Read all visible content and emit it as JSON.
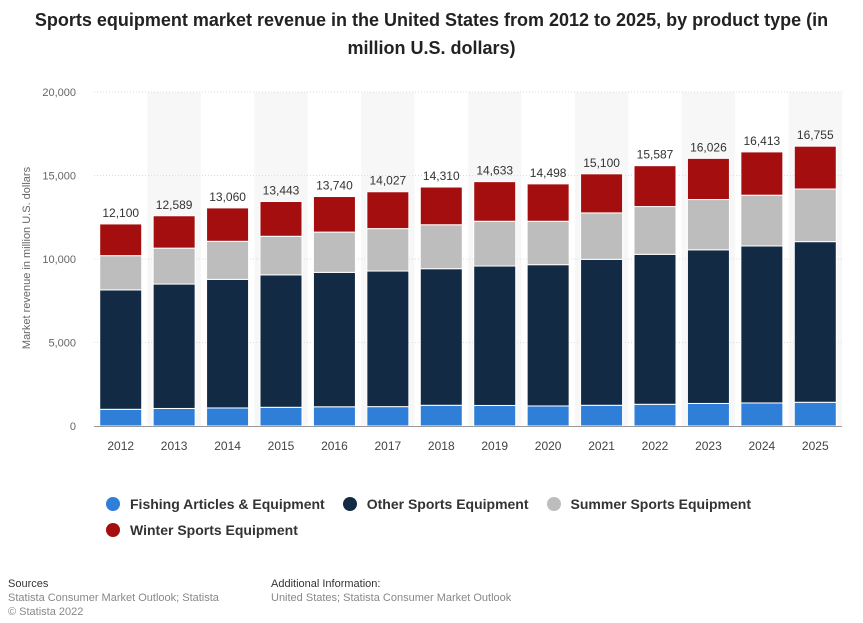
{
  "chart_data": {
    "type": "bar",
    "stacked": true,
    "title": "Sports equipment market revenue in the United States from 2012 to 2025, by product type (in million U.S. dollars)",
    "xlabel": "",
    "ylabel": "Market revenue in million U.S. dollars",
    "ylim": [
      0,
      20000
    ],
    "yticks": [
      0,
      5000,
      10000,
      15000,
      20000
    ],
    "ytick_labels": [
      "0",
      "5,000",
      "10,000",
      "15,000",
      "20,000"
    ],
    "grid": true,
    "categories": [
      "2012",
      "2013",
      "2014",
      "2015",
      "2016",
      "2017",
      "2018",
      "2019",
      "2020",
      "2021",
      "2022",
      "2023",
      "2024",
      "2025"
    ],
    "totals": [
      12100,
      12589,
      13060,
      13443,
      13740,
      14027,
      14310,
      14633,
      14498,
      15100,
      15587,
      16026,
      16413,
      16755
    ],
    "total_labels": [
      "12,100",
      "12,589",
      "13,060",
      "13,443",
      "13,740",
      "14,027",
      "14,310",
      "14,633",
      "14,498",
      "15,100",
      "15,587",
      "16,026",
      "16,413",
      "16,755"
    ],
    "series": [
      {
        "name": "Fishing Articles & Equipment",
        "color": "#2f7ed8",
        "values": [
          1000,
          1050,
          1080,
          1120,
          1150,
          1160,
          1240,
          1230,
          1200,
          1240,
          1300,
          1350,
          1380,
          1420
        ]
      },
      {
        "name": "Other Sports Equipment",
        "color": "#132a45",
        "values": [
          7150,
          7450,
          7700,
          7930,
          8050,
          8120,
          8180,
          8350,
          8460,
          8740,
          8980,
          9200,
          9400,
          9620
        ]
      },
      {
        "name": "Summer Sports Equipment",
        "color": "#bdbdbd",
        "values": [
          2050,
          2150,
          2280,
          2310,
          2410,
          2540,
          2630,
          2680,
          2600,
          2780,
          2860,
          3010,
          3040,
          3150
        ]
      },
      {
        "name": "Winter Sports Equipment",
        "color": "#a50e0e",
        "values": [
          1900,
          1939,
          2000,
          2083,
          2130,
          2207,
          2260,
          2373,
          2238,
          2340,
          2447,
          2466,
          2593,
          2565
        ]
      }
    ]
  },
  "footer": {
    "sources_label": "Sources",
    "sources_text": "Statista Consumer Market Outlook; Statista",
    "copyright": "© Statista 2022",
    "additional_label": "Additional Information:",
    "additional_text": "United States; Statista Consumer Market Outlook"
  }
}
